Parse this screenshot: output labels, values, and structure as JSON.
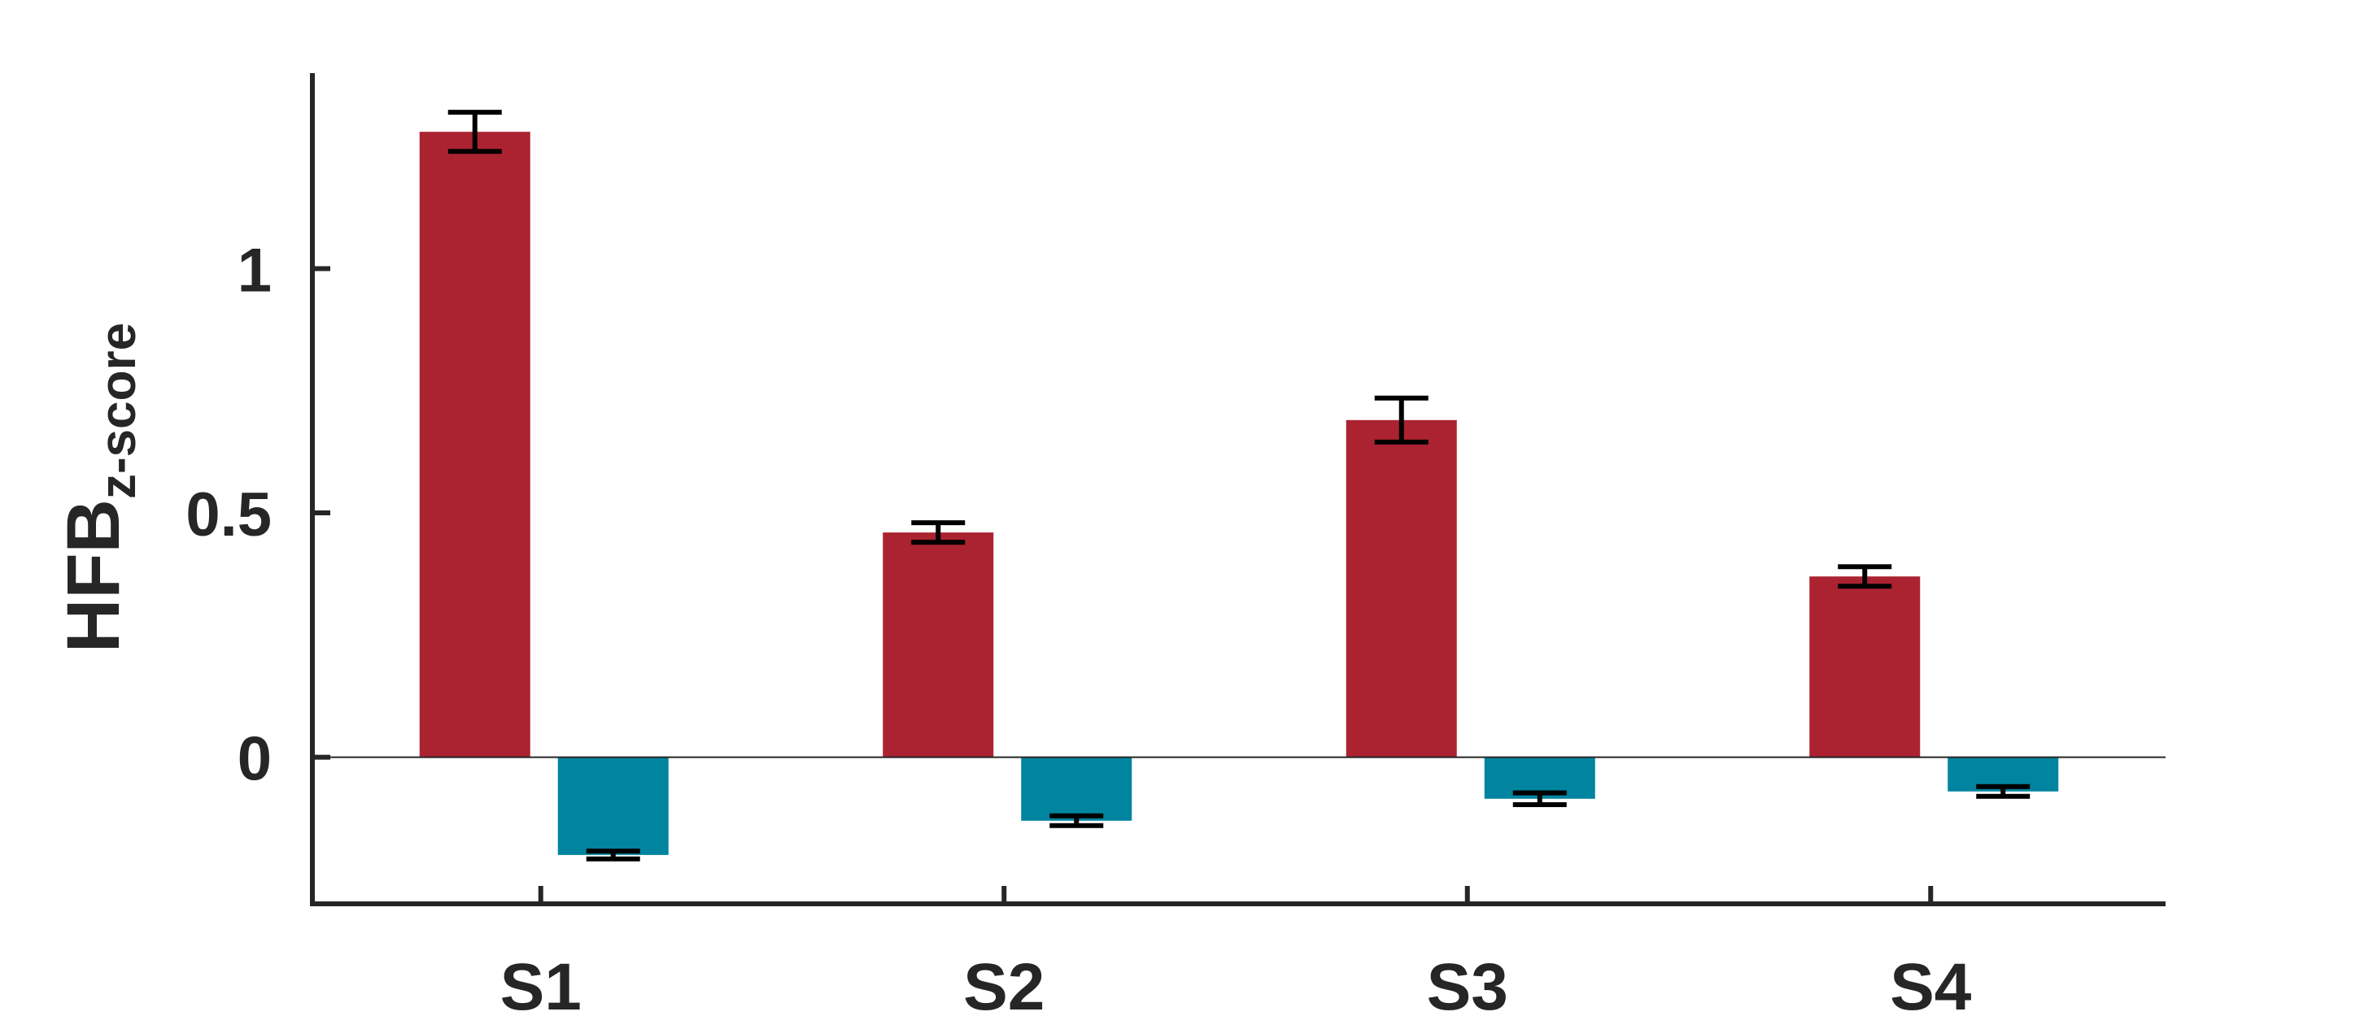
{
  "chart_data": {
    "type": "bar",
    "title": "",
    "xlabel": "",
    "ylabel": "HFB",
    "ylabel_subscript": "z-score",
    "categories": [
      "S1",
      "S2",
      "S3",
      "S4"
    ],
    "ylim": [
      -0.3,
      1.4
    ],
    "yticks": [
      0,
      0.5,
      1
    ],
    "ytick_labels": [
      "0",
      "0.5",
      "1"
    ],
    "grid": false,
    "legend": "none",
    "zero_line": true,
    "series": [
      {
        "color": "#AB2330",
        "values": [
          1.28,
          0.46,
          0.69,
          0.37
        ],
        "error": [
          0.04,
          0.02,
          0.045,
          0.02
        ]
      },
      {
        "color": "#00849F",
        "values": [
          -0.2,
          -0.13,
          -0.085,
          -0.07
        ],
        "error": [
          0.008,
          0.01,
          0.012,
          0.01
        ]
      }
    ],
    "error_bar_color": "#000000",
    "axis_color": "#262626"
  }
}
